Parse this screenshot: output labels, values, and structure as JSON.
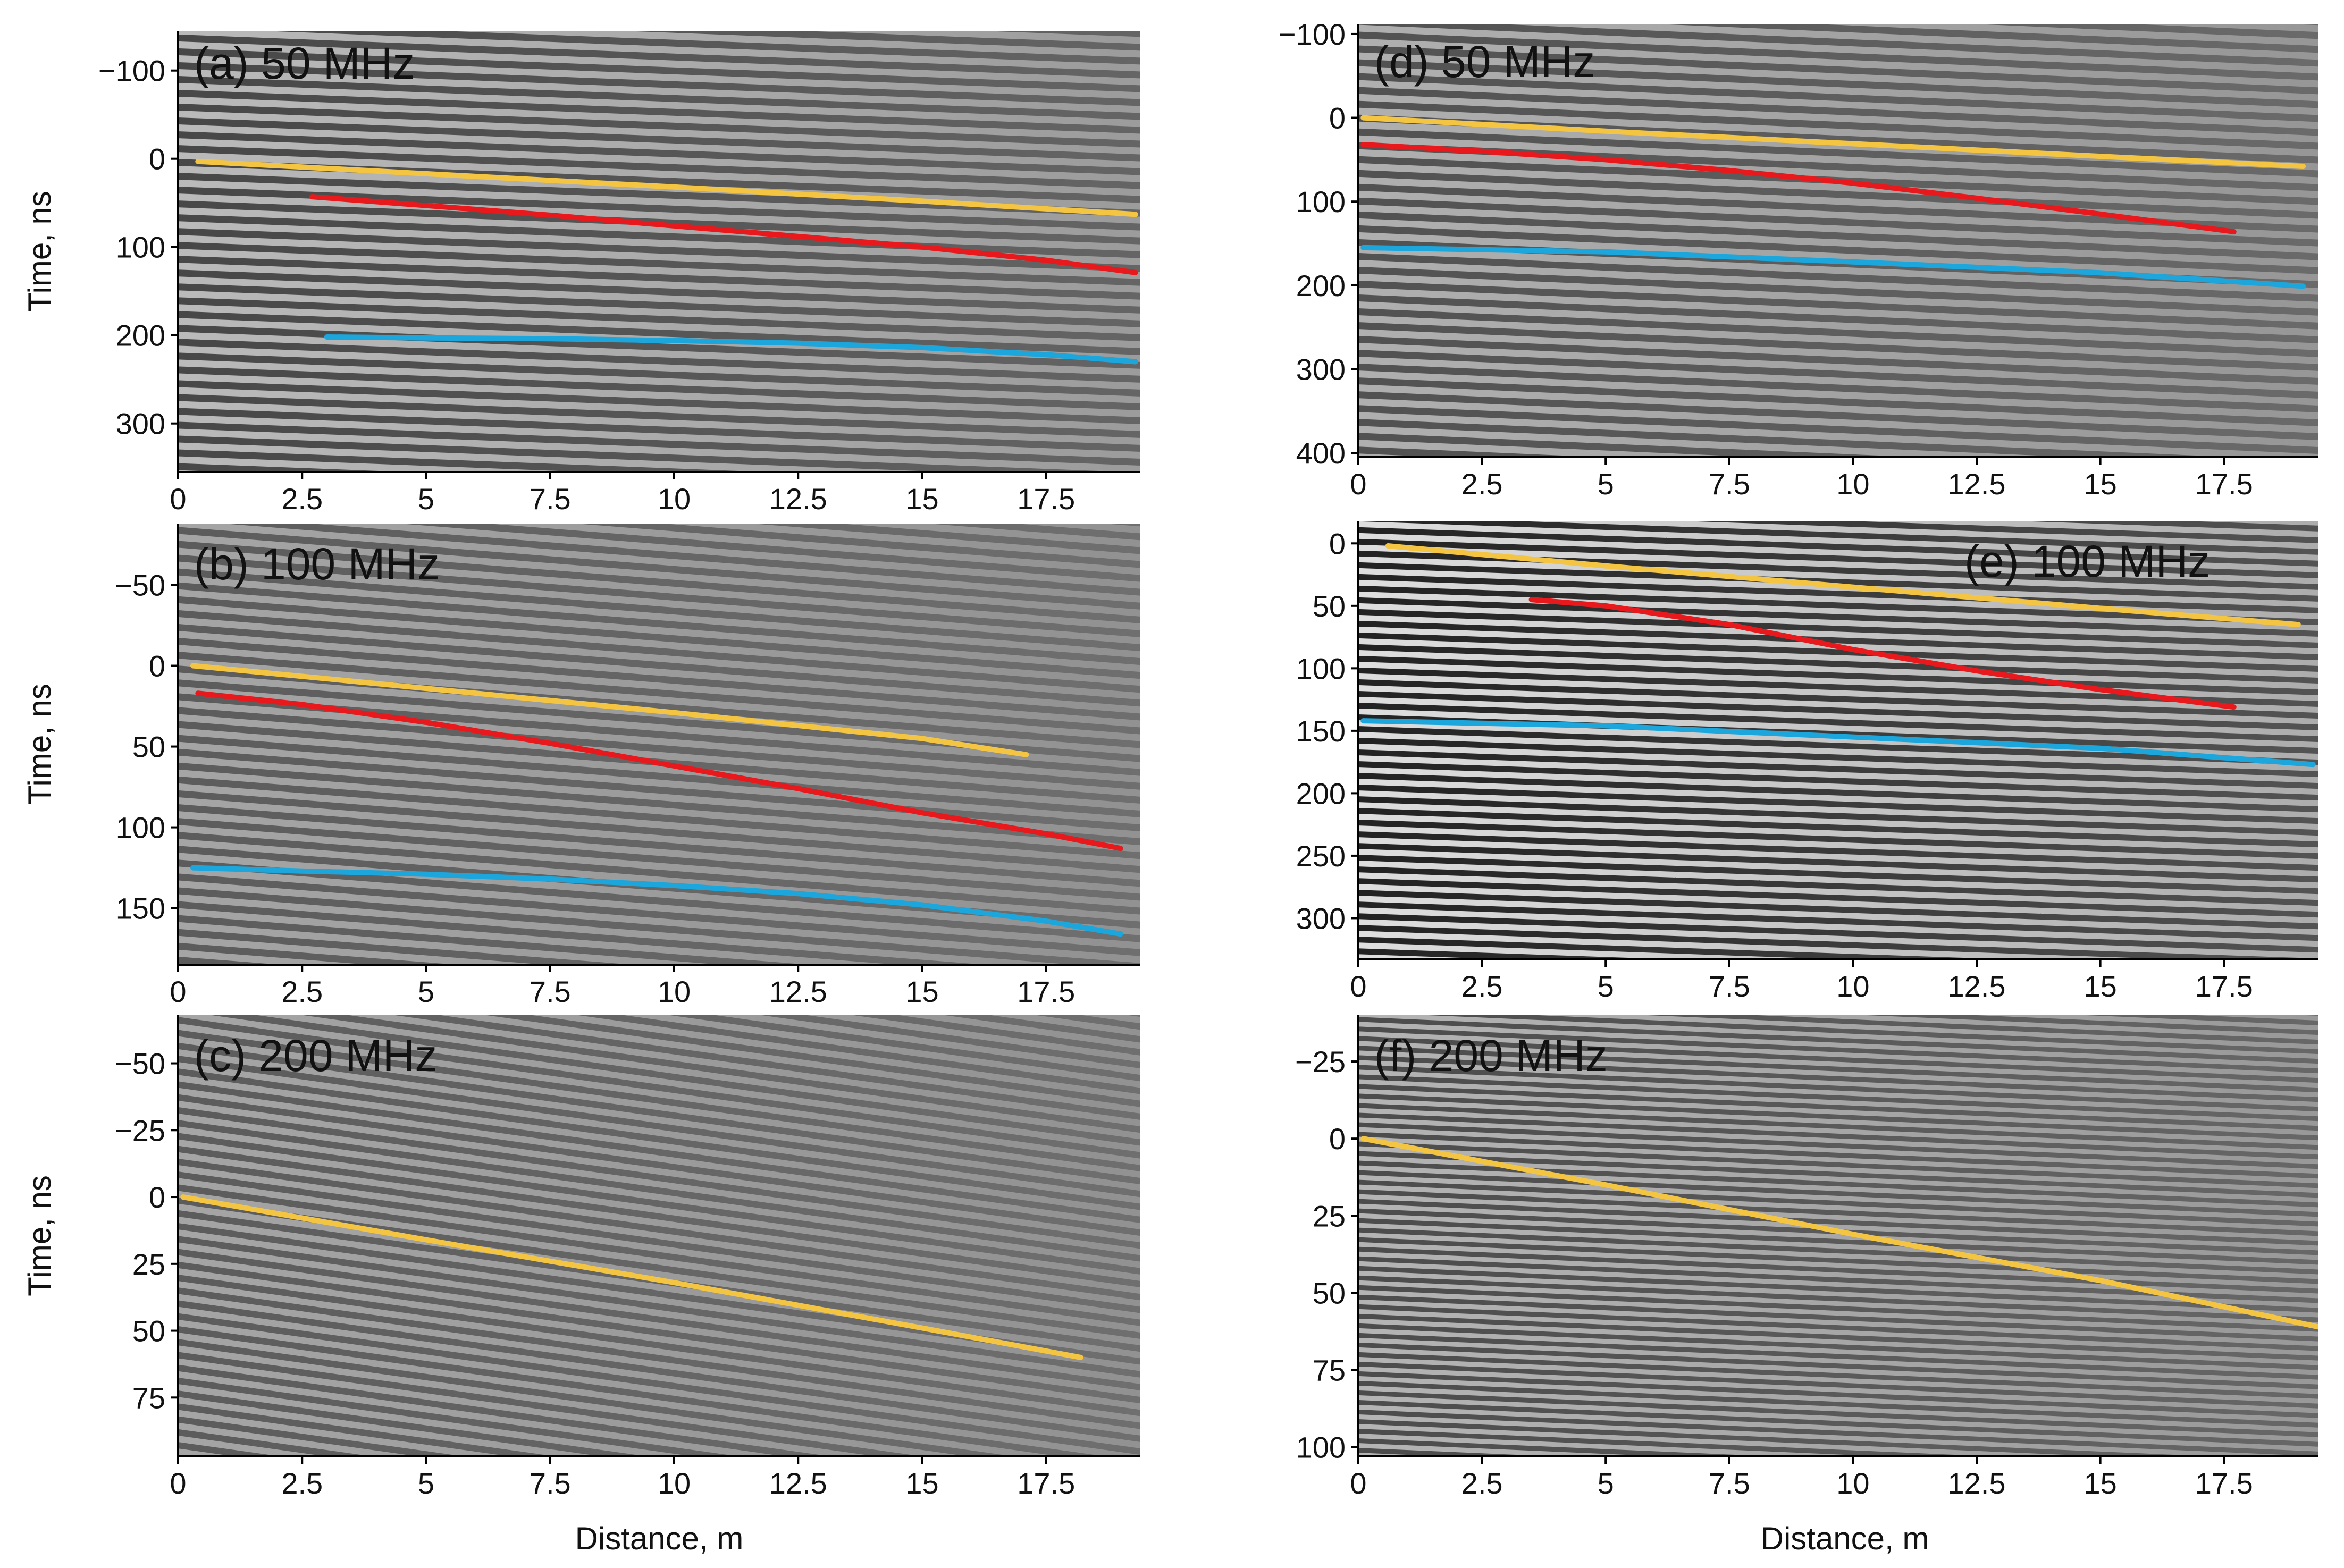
{
  "figure": {
    "colors": {
      "first_arrival": "#f4c542",
      "reflector_red": "#e8191c",
      "reflector_blue": "#1ca6dc",
      "background": "#808080"
    }
  },
  "chart_data": [
    {
      "id": "a",
      "type": "line",
      "title": "(a) 50 MHz",
      "xlabel": "",
      "ylabel": "Time, ns",
      "xlim": [
        0,
        19.4
      ],
      "ylim": [
        355,
        -145
      ],
      "y_inverted": true,
      "xticks": [
        0,
        2.5,
        5,
        7.5,
        10,
        12.5,
        15,
        17.5
      ],
      "xtick_labels": [
        "0",
        "2.5",
        "5",
        "7.5",
        "10",
        "12.5",
        "15",
        "17.5"
      ],
      "yticks": [
        -100,
        0,
        100,
        200,
        300
      ],
      "ytick_labels": [
        "−100",
        "0",
        "100",
        "200",
        "300"
      ],
      "stripes": {
        "angle_deg": 2.2,
        "spacing": 26,
        "contrast": 0.55
      },
      "series": [
        {
          "color": "#f4c542",
          "x": [
            0.4,
            5,
            10,
            15,
            19.3
          ],
          "y": [
            3,
            17,
            32,
            48,
            63
          ]
        },
        {
          "color": "#e8191c",
          "x": [
            2.7,
            5,
            7.5,
            10,
            12.5,
            15,
            17.5,
            19.3
          ],
          "y": [
            43,
            53,
            64,
            76,
            88,
            100,
            115,
            129
          ]
        },
        {
          "color": "#1ca6dc",
          "x": [
            3.0,
            5,
            7.5,
            10,
            12.5,
            15,
            17.5,
            19.3
          ],
          "y": [
            202,
            203,
            204,
            206,
            209,
            214,
            222,
            230
          ]
        }
      ]
    },
    {
      "id": "b",
      "type": "line",
      "title": "(b) 100 MHz",
      "xlabel": "",
      "ylabel": "Time, ns",
      "xlim": [
        0,
        19.4
      ],
      "ylim": [
        185,
        -88
      ],
      "y_inverted": true,
      "xticks": [
        0,
        2.5,
        5,
        7.5,
        10,
        12.5,
        15,
        17.5
      ],
      "xtick_labels": [
        "0",
        "2.5",
        "5",
        "7.5",
        "10",
        "12.5",
        "15",
        "17.5"
      ],
      "yticks": [
        -50,
        0,
        50,
        100,
        150
      ],
      "ytick_labels": [
        "−50",
        "0",
        "50",
        "100",
        "150"
      ],
      "stripes": {
        "angle_deg": 4.5,
        "spacing": 26,
        "contrast": 0.35
      },
      "series": [
        {
          "color": "#f4c542",
          "x": [
            0.3,
            5,
            10,
            15,
            17.1
          ],
          "y": [
            0,
            14,
            29,
            45,
            55
          ]
        },
        {
          "color": "#e8191c",
          "x": [
            0.4,
            2.5,
            5,
            7.5,
            10,
            12.5,
            15,
            17.5,
            19.0
          ],
          "y": [
            17,
            24,
            35,
            48,
            62,
            76,
            91,
            104,
            113
          ]
        },
        {
          "color": "#1ca6dc",
          "x": [
            0.3,
            2.5,
            5,
            7.5,
            10,
            12.5,
            15,
            17.5,
            19.0
          ],
          "y": [
            125,
            127,
            129,
            132,
            136,
            141,
            148,
            158,
            166
          ]
        }
      ]
    },
    {
      "id": "c",
      "type": "line",
      "title": "(c) 200 MHz",
      "xlabel": "Distance, m",
      "ylabel": "Time, ns",
      "xlim": [
        0,
        19.4
      ],
      "ylim": [
        97,
        -68
      ],
      "y_inverted": true,
      "xticks": [
        0,
        2.5,
        5,
        7.5,
        10,
        12.5,
        15,
        17.5
      ],
      "xtick_labels": [
        "0",
        "2.5",
        "5",
        "7.5",
        "10",
        "12.5",
        "15",
        "17.5"
      ],
      "yticks": [
        -50,
        -25,
        0,
        25,
        50,
        75
      ],
      "ytick_labels": [
        "−50",
        "−25",
        "0",
        "25",
        "50",
        "75"
      ],
      "stripes": {
        "angle_deg": 8,
        "spacing": 24,
        "contrast": 0.35
      },
      "series": [
        {
          "color": "#f4c542",
          "x": [
            0.1,
            5,
            10,
            15,
            18.2
          ],
          "y": [
            0,
            16,
            32,
            49,
            60
          ]
        }
      ]
    },
    {
      "id": "d",
      "type": "line",
      "title": "(d) 50 MHz",
      "xlabel": "",
      "ylabel": "",
      "xlim": [
        0,
        19.4
      ],
      "ylim": [
        405,
        -112
      ],
      "y_inverted": true,
      "xticks": [
        0,
        2.5,
        5,
        7.5,
        10,
        12.5,
        15,
        17.5
      ],
      "xtick_labels": [
        "0",
        "2.5",
        "5",
        "7.5",
        "10",
        "12.5",
        "15",
        "17.5"
      ],
      "yticks": [
        -100,
        0,
        100,
        200,
        300,
        400
      ],
      "ytick_labels": [
        "−100",
        "0",
        "100",
        "200",
        "300",
        "400"
      ],
      "stripes": {
        "angle_deg": 2.5,
        "spacing": 26,
        "contrast": 0.45
      },
      "series": [
        {
          "color": "#f4c542",
          "x": [
            0.1,
            5,
            10,
            15,
            19.1
          ],
          "y": [
            0,
            16,
            31,
            46,
            58
          ]
        },
        {
          "color": "#e8191c",
          "x": [
            0.1,
            2.5,
            5,
            7.5,
            10,
            12.5,
            15,
            17.7
          ],
          "y": [
            32,
            40,
            50,
            63,
            78,
            96,
            115,
            136
          ]
        },
        {
          "color": "#1ca6dc",
          "x": [
            0.1,
            5,
            10,
            15,
            19.1
          ],
          "y": [
            155,
            160,
            172,
            185,
            201
          ]
        }
      ]
    },
    {
      "id": "e",
      "type": "line",
      "title": "(e) 100 MHz",
      "xlabel": "",
      "ylabel": "",
      "xlim": [
        0,
        19.4
      ],
      "ylim": [
        333,
        -18
      ],
      "y_inverted": true,
      "xticks": [
        0,
        2.5,
        5,
        7.5,
        10,
        12.5,
        15,
        17.5
      ],
      "xtick_labels": [
        "0",
        "2.5",
        "5",
        "7.5",
        "10",
        "12.5",
        "15",
        "17.5"
      ],
      "yticks": [
        0,
        50,
        100,
        150,
        200,
        250,
        300
      ],
      "ytick_labels": [
        "0",
        "50",
        "100",
        "150",
        "200",
        "250",
        "300"
      ],
      "stripes": {
        "angle_deg": 2.0,
        "spacing": 22,
        "contrast": 0.9
      },
      "series": [
        {
          "color": "#f4c542",
          "x": [
            0.6,
            5,
            10,
            15,
            19.0
          ],
          "y": [
            2,
            18,
            35,
            52,
            65
          ]
        },
        {
          "color": "#e8191c",
          "x": [
            3.5,
            5,
            7.5,
            10,
            12.5,
            15,
            17.7
          ],
          "y": [
            45,
            50,
            65,
            85,
            102,
            117,
            131
          ]
        },
        {
          "color": "#1ca6dc",
          "x": [
            0.1,
            5,
            10,
            15,
            19.3
          ],
          "y": [
            142,
            146,
            155,
            164,
            177
          ]
        }
      ]
    },
    {
      "id": "f",
      "type": "line",
      "title": "(f) 200 MHz",
      "xlabel": "Distance, m",
      "ylabel": "",
      "xlim": [
        0,
        19.4
      ],
      "ylim": [
        103,
        -40
      ],
      "y_inverted": true,
      "xticks": [
        0,
        2.5,
        5,
        7.5,
        10,
        12.5,
        15,
        17.5
      ],
      "xtick_labels": [
        "0",
        "2.5",
        "5",
        "7.5",
        "10",
        "12.5",
        "15",
        "17.5"
      ],
      "yticks": [
        -25,
        0,
        25,
        50,
        75,
        100
      ],
      "ytick_labels": [
        "−25",
        "0",
        "25",
        "50",
        "75",
        "100"
      ],
      "stripes": {
        "angle_deg": 2.5,
        "spacing": 18,
        "contrast": 0.5
      },
      "series": [
        {
          "color": "#f4c542",
          "x": [
            0.1,
            5,
            10,
            15,
            19.4
          ],
          "y": [
            0,
            15,
            31,
            46,
            61
          ]
        }
      ]
    }
  ]
}
